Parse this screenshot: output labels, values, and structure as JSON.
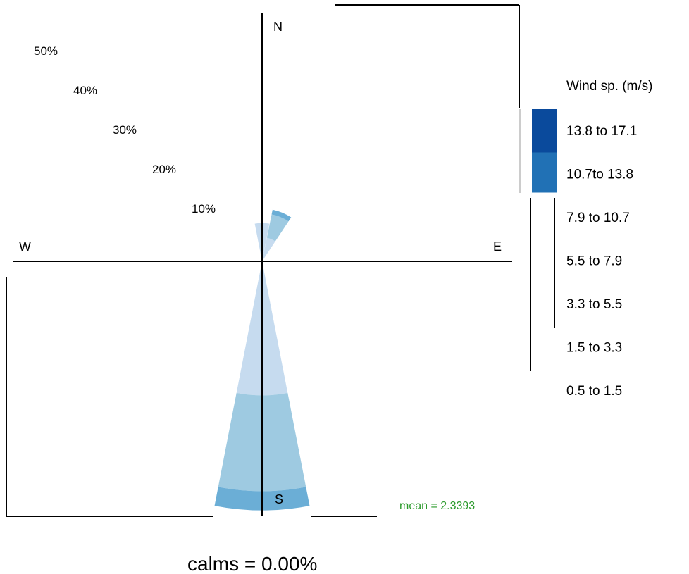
{
  "chart_data": {
    "type": "windrose",
    "title": "",
    "compass": {
      "north": "N",
      "south": "S",
      "east": "E",
      "west": "W"
    },
    "radial_ticks": [
      {
        "value": 10,
        "label": "10%"
      },
      {
        "value": 20,
        "label": "20%"
      },
      {
        "value": 30,
        "label": "30%"
      },
      {
        "value": 40,
        "label": "40%"
      },
      {
        "value": 50,
        "label": "50%"
      }
    ],
    "legend": {
      "title": "Wind sp. (m/s)",
      "bins": [
        {
          "label": "13.8 to 17.1",
          "color": "#0a4a9c"
        },
        {
          "label": "10.7to  13.8",
          "color": "#2171b5"
        },
        {
          "label": "7.9 to 10.7",
          "color": "#4292c6"
        },
        {
          "label": "5.5 to 7.9",
          "color": "#6baed6"
        },
        {
          "label": "3.3 to 5.5",
          "color": "#9ecae1"
        },
        {
          "label": "1.5 to 3.3",
          "color": "#c6dbef"
        },
        {
          "label": "0.5 to 1.5",
          "color": "#deebf7"
        }
      ]
    },
    "directions": [
      {
        "direction": "S",
        "segments": [
          {
            "bin": "1.5 to 3.3",
            "from": 0,
            "to": 28
          },
          {
            "bin": "3.3 to 5.5",
            "from": 28,
            "to": 48
          },
          {
            "bin": "5.5 to 7.9",
            "from": 48,
            "to": 52
          }
        ]
      },
      {
        "direction": "N",
        "segments": [
          {
            "bin": "1.5 to 3.3",
            "from": 0,
            "to": 8
          }
        ]
      },
      {
        "direction": "NNE",
        "segments": [
          {
            "bin": "1.5 to 3.3",
            "from": 0,
            "to": 5
          },
          {
            "bin": "3.3 to 5.5",
            "from": 5,
            "to": 10
          },
          {
            "bin": "5.5 to 7.9",
            "from": 10,
            "to": 11
          }
        ]
      }
    ],
    "mean_label": "mean = 2.3393",
    "calms_label": "calms = 0.00%"
  }
}
